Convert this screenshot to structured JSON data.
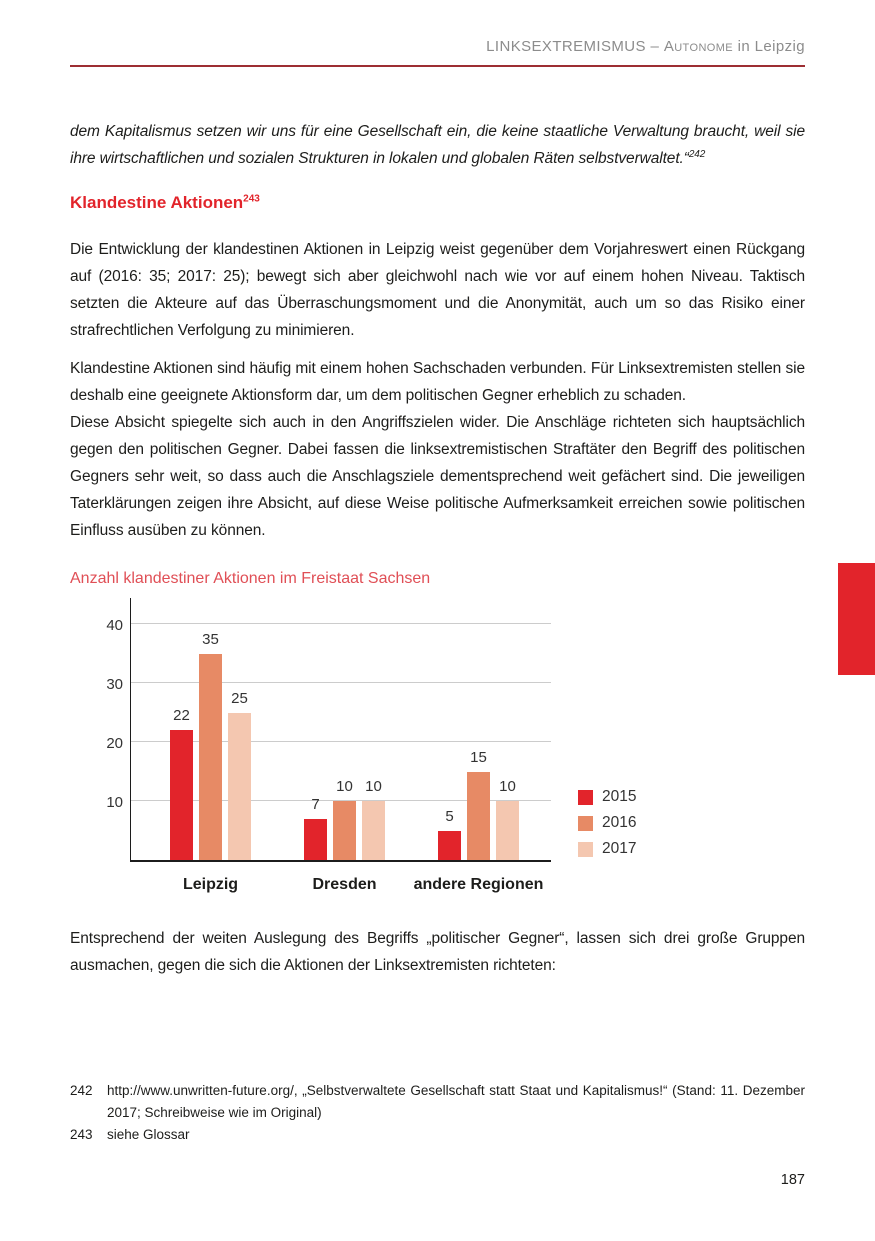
{
  "header": {
    "title_prefix": "LINKSEXTREMISMUS – ",
    "title_smallcaps": "Autonome",
    "title_suffix": " in Leipzig"
  },
  "quote": {
    "text": "dem Kapitalismus setzen wir uns für eine Gesellschaft ein, die keine staatliche Verwaltung braucht, weil sie ihre wirtschaftlichen und sozialen Strukturen in lokalen und globalen Räten selbstverwaltet.“",
    "footnote_ref": "242"
  },
  "section": {
    "heading": "Klandestine Aktionen",
    "heading_footnote_ref": "243"
  },
  "paragraphs": {
    "p1": "Die Entwicklung der klandestinen Aktionen in Leipzig weist gegenüber dem Vorjahreswert einen Rückgang auf (2016: 35; 2017: 25); bewegt sich aber gleichwohl nach wie vor auf einem hohen Niveau. Taktisch setzten die Akteure auf das Überraschungsmoment und die Anonymität, auch um so das Risiko einer strafrechtlichen Verfolgung zu minimieren.",
    "p2": "Klandestine Aktionen sind häufig mit einem hohen Sachschaden verbunden. Für Linksextremisten stellen sie deshalb eine geeignete Aktionsform dar, um dem politischen Gegner erheblich zu schaden.",
    "p3": "Diese Absicht spiegelte sich auch in den Angriffszielen wider. Die Anschläge richteten sich hauptsächlich gegen den politischen Gegner. Dabei fassen die linksextremistischen Straftäter den Begriff des politischen Gegners sehr weit, so dass auch die Anschlagsziele dementsprechend weit gefächert sind. Die jeweiligen Taterklärungen zeigen ihre Absicht, auf diese Weise politische Aufmerksamkeit erreichen sowie politischen Einfluss ausüben zu können.",
    "p4": "Entsprechend der weiten Auslegung des Begriffs „politischer Gegner“, lassen sich drei große Gruppen ausmachen, gegen die sich die Aktionen der Linksextremisten richteten:"
  },
  "chart_data": {
    "type": "bar",
    "title": "Anzahl klandestiner Aktionen im Freistaat Sachsen",
    "categories": [
      "Leipzig",
      "Dresden",
      "andere Regionen"
    ],
    "series": [
      {
        "name": "2015",
        "color": "#e2242b",
        "values": [
          22,
          7,
          5
        ]
      },
      {
        "name": "2016",
        "color": "#e78a65",
        "values": [
          35,
          10,
          15
        ]
      },
      {
        "name": "2017",
        "color": "#f4c7b0",
        "values": [
          25,
          10,
          10
        ]
      }
    ],
    "y_ticks": [
      10,
      20,
      30,
      40
    ],
    "ylim": [
      0,
      44
    ],
    "grid": true,
    "legend_position": "right",
    "value_labels": true,
    "xlabel": "",
    "ylabel": ""
  },
  "footnotes": [
    {
      "number": "242",
      "text": "http://www.unwritten-future.org/, „Selbstverwaltete Gesellschaft statt Staat und Kapitalismus!“ (Stand: 11. Dezember 2017; Schreibweise wie im Original)"
    },
    {
      "number": "243",
      "text": "siehe Glossar"
    }
  ],
  "page_number": "187",
  "colors": {
    "accent_red": "#e2242b",
    "chart_title_red": "#e04f56",
    "header_rule": "#9d2e33",
    "header_text": "#8c8c8c",
    "gridline": "#cccccc"
  }
}
